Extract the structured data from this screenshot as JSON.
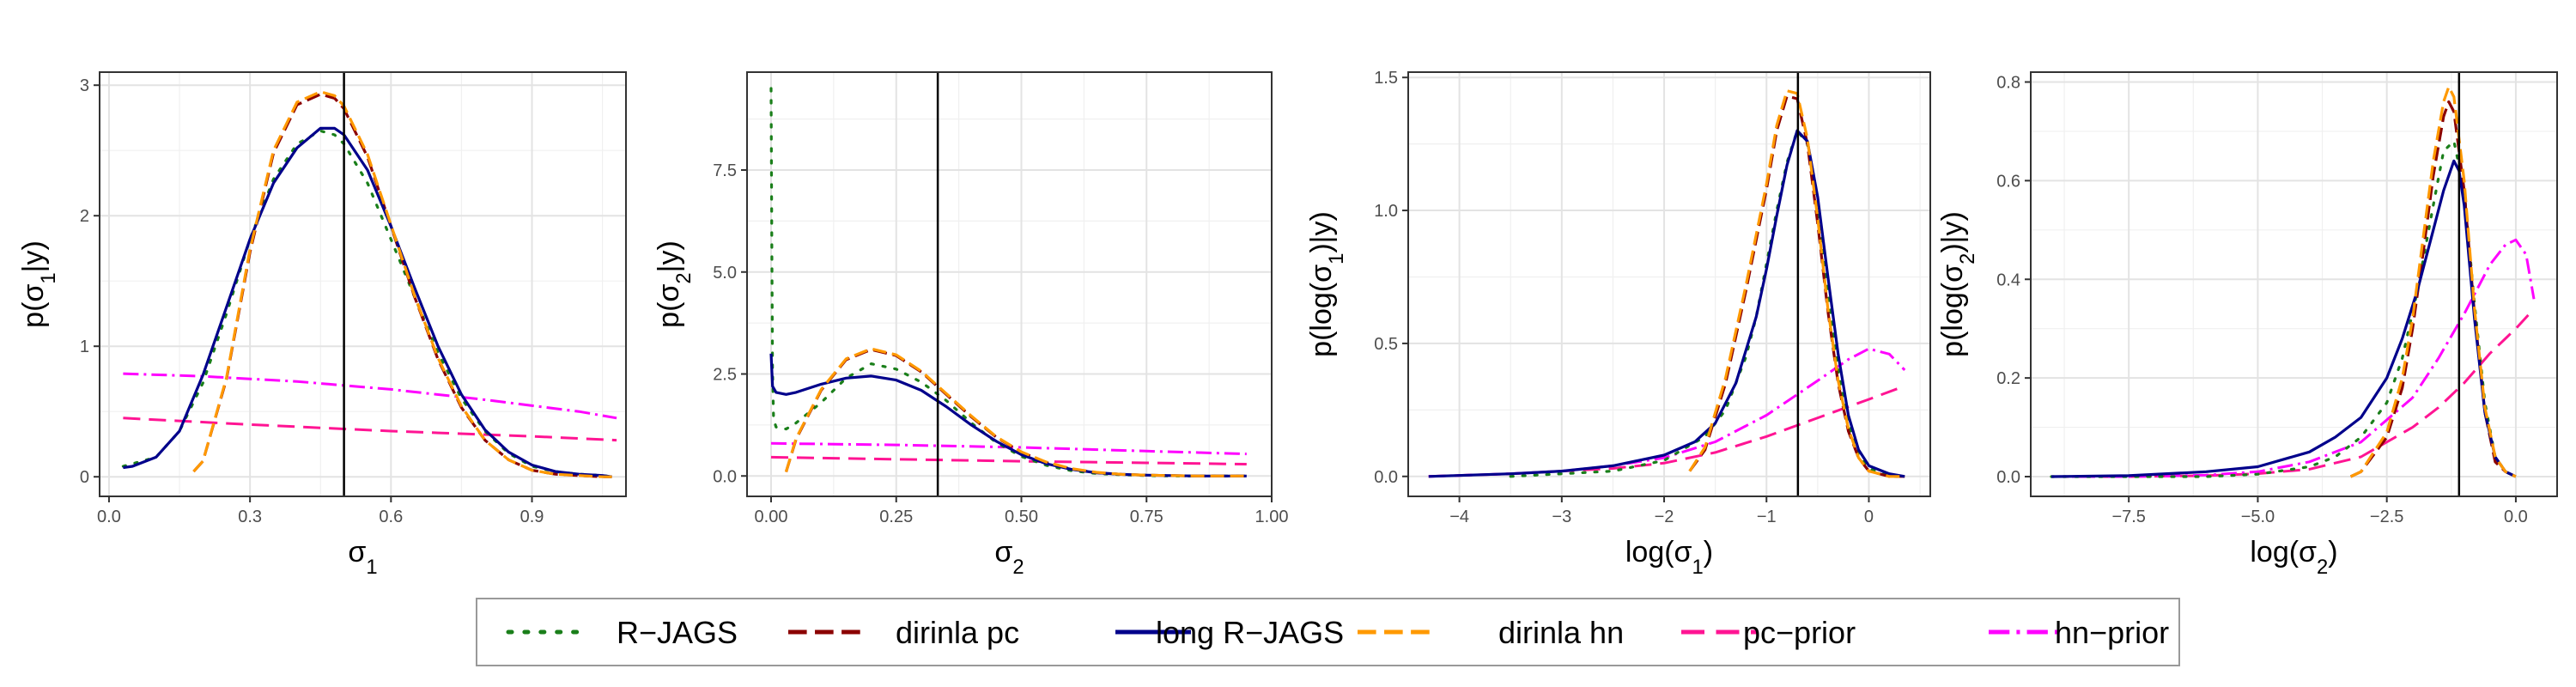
{
  "colors": {
    "R-JAGS": "#1a7f1a",
    "dirinla pc": "#8b0000",
    "long R-JAGS": "#00008b",
    "dirinla hn": "#ff9900",
    "pc-prior": "#ff1493",
    "hn-prior": "#ff00ff",
    "true-value": "#000000"
  },
  "legend": {
    "items": [
      {
        "key": "R-JAGS",
        "label": "R−JAGS"
      },
      {
        "key": "dirinla pc",
        "label": "dirinla pc"
      },
      {
        "key": "long R-JAGS",
        "label": "long R−JAGS"
      },
      {
        "key": "dirinla hn",
        "label": "dirinla hn"
      },
      {
        "key": "pc-prior",
        "label": "pc−prior"
      },
      {
        "key": "hn-prior",
        "label": "hn−prior"
      }
    ]
  },
  "chart_data": [
    {
      "type": "line",
      "xlabel": "σ1",
      "ylabel": "p(σ1|y)",
      "xlim": [
        -0.02,
        1.1
      ],
      "ylim": [
        -0.15,
        3.1
      ],
      "xticks": [
        0.0,
        0.3,
        0.6,
        0.9
      ],
      "xtick_labels": [
        "0.0",
        "0.3",
        "0.6",
        "0.9"
      ],
      "yticks": [
        0,
        1,
        2,
        3
      ],
      "ytick_labels": [
        "0",
        "1",
        "2",
        "3"
      ],
      "vline": 0.5,
      "grid": true,
      "series": [
        {
          "name": "R-JAGS",
          "x": [
            0.03,
            0.1,
            0.15,
            0.2,
            0.25,
            0.3,
            0.35,
            0.4,
            0.45,
            0.48,
            0.5,
            0.55,
            0.6,
            0.65,
            0.7,
            0.75,
            0.8,
            0.85,
            0.9,
            0.95,
            1.0,
            1.05,
            1.07
          ],
          "y": [
            0.08,
            0.15,
            0.35,
            0.72,
            1.25,
            1.82,
            2.28,
            2.55,
            2.65,
            2.62,
            2.55,
            2.25,
            1.82,
            1.38,
            0.95,
            0.6,
            0.35,
            0.18,
            0.08,
            0.04,
            0.02,
            0.01,
            0.0
          ]
        },
        {
          "name": "dirinla pc",
          "x": [
            0.18,
            0.2,
            0.25,
            0.3,
            0.35,
            0.4,
            0.45,
            0.48,
            0.5,
            0.55,
            0.6,
            0.65,
            0.7,
            0.75,
            0.8,
            0.85,
            0.9,
            0.95,
            1.0,
            1.05,
            1.07
          ],
          "y": [
            0.04,
            0.12,
            0.75,
            1.72,
            2.48,
            2.85,
            2.93,
            2.9,
            2.82,
            2.45,
            1.92,
            1.38,
            0.9,
            0.53,
            0.28,
            0.13,
            0.05,
            0.02,
            0.01,
            0.0,
            0.0
          ]
        },
        {
          "name": "long R-JAGS",
          "x": [
            0.03,
            0.05,
            0.1,
            0.15,
            0.2,
            0.25,
            0.3,
            0.35,
            0.4,
            0.45,
            0.48,
            0.5,
            0.55,
            0.6,
            0.65,
            0.7,
            0.75,
            0.8,
            0.85,
            0.9,
            0.95,
            1.0,
            1.05,
            1.07
          ],
          "y": [
            0.07,
            0.08,
            0.15,
            0.35,
            0.78,
            1.3,
            1.82,
            2.25,
            2.52,
            2.67,
            2.67,
            2.62,
            2.35,
            1.92,
            1.45,
            1.0,
            0.63,
            0.36,
            0.19,
            0.09,
            0.04,
            0.02,
            0.01,
            0.0
          ]
        },
        {
          "name": "dirinla hn",
          "x": [
            0.18,
            0.2,
            0.25,
            0.3,
            0.35,
            0.4,
            0.45,
            0.48,
            0.5,
            0.55,
            0.6,
            0.65,
            0.7,
            0.75,
            0.8,
            0.85,
            0.9,
            0.95,
            1.0,
            1.05,
            1.07
          ],
          "y": [
            0.04,
            0.12,
            0.76,
            1.74,
            2.5,
            2.87,
            2.95,
            2.92,
            2.84,
            2.47,
            1.93,
            1.39,
            0.91,
            0.54,
            0.28,
            0.13,
            0.05,
            0.02,
            0.01,
            0.0,
            0.0
          ]
        },
        {
          "name": "pc-prior",
          "x": [
            0.03,
            0.3,
            0.6,
            0.9,
            1.08
          ],
          "y": [
            0.45,
            0.4,
            0.35,
            0.31,
            0.28
          ]
        },
        {
          "name": "hn-prior",
          "x": [
            0.03,
            0.2,
            0.4,
            0.6,
            0.8,
            1.0,
            1.08
          ],
          "y": [
            0.79,
            0.77,
            0.73,
            0.67,
            0.59,
            0.5,
            0.45
          ]
        }
      ]
    },
    {
      "type": "line",
      "xlabel": "σ2",
      "ylabel": "p(σ2|y)",
      "xlim": [
        -0.048,
        1.0
      ],
      "ylim": [
        -0.5,
        9.9
      ],
      "xticks": [
        0.0,
        0.25,
        0.5,
        0.75,
        1.0
      ],
      "xtick_labels": [
        "0.00",
        "0.25",
        "0.50",
        "0.75",
        "1.00"
      ],
      "yticks": [
        0.0,
        2.5,
        5.0,
        7.5
      ],
      "ytick_labels": [
        "0.0",
        "2.5",
        "5.0",
        "7.5"
      ],
      "vline": 0.333,
      "grid": true,
      "series": [
        {
          "name": "R-JAGS",
          "x": [
            0.0,
            0.0015,
            0.003,
            0.005,
            0.01,
            0.03,
            0.05,
            0.1,
            0.15,
            0.2,
            0.25,
            0.3,
            0.35,
            0.4,
            0.45,
            0.5,
            0.55,
            0.6,
            0.65,
            0.7,
            0.75,
            0.8,
            0.85,
            0.9,
            0.95
          ],
          "y": [
            9.5,
            5.5,
            2.6,
            1.4,
            1.2,
            1.15,
            1.3,
            1.8,
            2.4,
            2.75,
            2.62,
            2.3,
            1.85,
            1.3,
            0.82,
            0.48,
            0.26,
            0.13,
            0.06,
            0.03,
            0.01,
            0.0,
            0.0,
            0.0,
            0.0
          ]
        },
        {
          "name": "dirinla pc",
          "x": [
            0.03,
            0.05,
            0.1,
            0.15,
            0.2,
            0.25,
            0.3,
            0.35,
            0.4,
            0.45,
            0.5,
            0.55,
            0.6,
            0.65,
            0.7,
            0.75,
            0.8,
            0.85,
            0.9,
            0.95
          ],
          "y": [
            0.1,
            0.9,
            2.1,
            2.85,
            3.1,
            2.95,
            2.55,
            2.0,
            1.45,
            0.95,
            0.58,
            0.33,
            0.17,
            0.08,
            0.04,
            0.02,
            0.01,
            0.0,
            0.0,
            0.0
          ]
        },
        {
          "name": "long R-JAGS",
          "x": [
            0.0,
            0.003,
            0.01,
            0.03,
            0.05,
            0.1,
            0.15,
            0.2,
            0.25,
            0.3,
            0.35,
            0.4,
            0.45,
            0.5,
            0.55,
            0.6,
            0.65,
            0.7,
            0.75,
            0.8,
            0.85,
            0.9,
            0.95
          ],
          "y": [
            3.0,
            2.2,
            2.05,
            2.0,
            2.05,
            2.25,
            2.4,
            2.45,
            2.35,
            2.1,
            1.7,
            1.25,
            0.85,
            0.52,
            0.3,
            0.16,
            0.08,
            0.04,
            0.02,
            0.01,
            0.0,
            0.0,
            0.0
          ]
        },
        {
          "name": "dirinla hn",
          "x": [
            0.03,
            0.05,
            0.1,
            0.15,
            0.2,
            0.25,
            0.3,
            0.35,
            0.4,
            0.45,
            0.5,
            0.55,
            0.6,
            0.65,
            0.7,
            0.75,
            0.8,
            0.85,
            0.9,
            0.95
          ],
          "y": [
            0.1,
            0.92,
            2.12,
            2.87,
            3.12,
            2.97,
            2.57,
            2.02,
            1.47,
            0.96,
            0.59,
            0.34,
            0.18,
            0.09,
            0.04,
            0.02,
            0.01,
            0.0,
            0.0,
            0.0
          ]
        },
        {
          "name": "pc-prior",
          "x": [
            0.0,
            0.25,
            0.5,
            0.75,
            0.95
          ],
          "y": [
            0.46,
            0.41,
            0.36,
            0.32,
            0.29
          ]
        },
        {
          "name": "hn-prior",
          "x": [
            0.0,
            0.25,
            0.5,
            0.75,
            0.95
          ],
          "y": [
            0.8,
            0.76,
            0.7,
            0.61,
            0.54
          ]
        }
      ]
    },
    {
      "type": "line",
      "xlabel": "log(σ1)",
      "ylabel": "p(log(σ1)|y)",
      "xlim": [
        -4.5,
        0.6
      ],
      "ylim": [
        -0.075,
        1.52
      ],
      "xticks": [
        -4,
        -3,
        -2,
        -1,
        0
      ],
      "xtick_labels": [
        "−4",
        "−3",
        "−2",
        "−1",
        "0"
      ],
      "yticks": [
        0.0,
        0.5,
        1.0,
        1.5
      ],
      "ytick_labels": [
        "0.0",
        "0.5",
        "1.0",
        "1.5"
      ],
      "vline": -0.693,
      "grid": true,
      "series": [
        {
          "name": "R-JAGS",
          "x": [
            -3.5,
            -2.5,
            -2.0,
            -1.6,
            -1.4,
            -1.2,
            -1.1,
            -1.0,
            -0.9,
            -0.8,
            -0.7,
            -0.6,
            -0.5,
            -0.4,
            -0.3,
            -0.2,
            -0.1,
            0.0,
            0.2,
            0.35
          ],
          "y": [
            0.0,
            0.02,
            0.06,
            0.15,
            0.25,
            0.45,
            0.6,
            0.8,
            1.0,
            1.18,
            1.3,
            1.25,
            1.02,
            0.7,
            0.4,
            0.2,
            0.08,
            0.03,
            0.0,
            0.0
          ]
        },
        {
          "name": "dirinla pc",
          "x": [
            -1.75,
            -1.6,
            -1.4,
            -1.2,
            -1.0,
            -0.9,
            -0.8,
            -0.7,
            -0.6,
            -0.5,
            -0.4,
            -0.3,
            -0.2,
            -0.1,
            0.0,
            0.2,
            0.35
          ],
          "y": [
            0.02,
            0.1,
            0.35,
            0.7,
            1.08,
            1.3,
            1.43,
            1.42,
            1.25,
            0.95,
            0.62,
            0.35,
            0.17,
            0.07,
            0.02,
            0.0,
            0.0
          ]
        },
        {
          "name": "long R-JAGS",
          "x": [
            -4.3,
            -3.5,
            -3.0,
            -2.5,
            -2.0,
            -1.7,
            -1.5,
            -1.3,
            -1.1,
            -1.0,
            -0.9,
            -0.8,
            -0.7,
            -0.6,
            -0.5,
            -0.4,
            -0.3,
            -0.2,
            -0.1,
            0.0,
            0.2,
            0.35
          ],
          "y": [
            0.0,
            0.01,
            0.02,
            0.04,
            0.08,
            0.13,
            0.2,
            0.35,
            0.6,
            0.78,
            0.98,
            1.17,
            1.3,
            1.26,
            1.05,
            0.75,
            0.46,
            0.23,
            0.1,
            0.04,
            0.01,
            0.0
          ]
        },
        {
          "name": "dirinla hn",
          "x": [
            -1.75,
            -1.6,
            -1.4,
            -1.2,
            -1.0,
            -0.9,
            -0.8,
            -0.7,
            -0.6,
            -0.5,
            -0.4,
            -0.3,
            -0.2,
            -0.1,
            0.0,
            0.2,
            0.35
          ],
          "y": [
            0.02,
            0.11,
            0.37,
            0.72,
            1.1,
            1.32,
            1.45,
            1.44,
            1.27,
            0.97,
            0.63,
            0.36,
            0.18,
            0.07,
            0.02,
            0.0,
            0.0
          ]
        },
        {
          "name": "pc-prior",
          "x": [
            -4.3,
            -3.5,
            -3.0,
            -2.5,
            -2.0,
            -1.5,
            -1.0,
            -0.5,
            0.0,
            0.35
          ],
          "y": [
            0.0,
            0.01,
            0.02,
            0.03,
            0.05,
            0.09,
            0.15,
            0.22,
            0.29,
            0.34
          ]
        },
        {
          "name": "hn-prior",
          "x": [
            -4.3,
            -3.5,
            -3.0,
            -2.5,
            -2.0,
            -1.5,
            -1.0,
            -0.5,
            -0.2,
            0.0,
            0.2,
            0.35
          ],
          "y": [
            0.0,
            0.01,
            0.02,
            0.04,
            0.07,
            0.13,
            0.23,
            0.36,
            0.44,
            0.48,
            0.46,
            0.4
          ]
        }
      ]
    },
    {
      "type": "line",
      "xlabel": "log(σ2)",
      "ylabel": "p(log(σ2)|y)",
      "xlim": [
        -9.4,
        0.8
      ],
      "ylim": [
        -0.04,
        0.82
      ],
      "xticks": [
        -7.5,
        -5.0,
        -2.5,
        0.0
      ],
      "xtick_labels": [
        "−7.5",
        "−5.0",
        "−2.5",
        "0.0"
      ],
      "yticks": [
        0.0,
        0.2,
        0.4,
        0.6,
        0.8
      ],
      "ytick_labels": [
        "0.0",
        "0.2",
        "0.4",
        "0.6",
        "0.8"
      ],
      "vline": -1.1,
      "grid": true,
      "series": [
        {
          "name": "R-JAGS",
          "x": [
            -9.0,
            -7.5,
            -6.0,
            -5.0,
            -4.0,
            -3.5,
            -3.0,
            -2.5,
            -2.2,
            -1.9,
            -1.6,
            -1.4,
            -1.2,
            -1.0,
            -0.8,
            -0.6,
            -0.4,
            -0.2,
            0.0
          ],
          "y": [
            0.0,
            0.0,
            0.0,
            0.005,
            0.02,
            0.04,
            0.08,
            0.15,
            0.24,
            0.38,
            0.55,
            0.66,
            0.68,
            0.58,
            0.35,
            0.15,
            0.04,
            0.01,
            0.0
          ]
        },
        {
          "name": "dirinla pc",
          "x": [
            -3.2,
            -3.0,
            -2.5,
            -2.2,
            -2.0,
            -1.8,
            -1.6,
            -1.4,
            -1.3,
            -1.2,
            -1.0,
            -0.8,
            -0.6,
            -0.4,
            -0.2,
            0.0
          ],
          "y": [
            0.0,
            0.01,
            0.08,
            0.18,
            0.3,
            0.45,
            0.61,
            0.73,
            0.76,
            0.74,
            0.58,
            0.33,
            0.13,
            0.03,
            0.01,
            0.0
          ]
        },
        {
          "name": "long R-JAGS",
          "x": [
            -9.0,
            -7.5,
            -6.0,
            -5.0,
            -4.0,
            -3.5,
            -3.0,
            -2.5,
            -2.2,
            -1.9,
            -1.6,
            -1.4,
            -1.2,
            -1.1,
            -1.0,
            -0.8,
            -0.6,
            -0.4,
            -0.2,
            0.0
          ],
          "y": [
            0.0,
            0.002,
            0.01,
            0.02,
            0.05,
            0.08,
            0.12,
            0.2,
            0.28,
            0.38,
            0.5,
            0.58,
            0.64,
            0.62,
            0.55,
            0.32,
            0.13,
            0.04,
            0.01,
            0.0
          ]
        },
        {
          "name": "dirinla hn",
          "x": [
            -3.2,
            -3.0,
            -2.5,
            -2.2,
            -2.0,
            -1.8,
            -1.6,
            -1.4,
            -1.3,
            -1.2,
            -1.0,
            -0.8,
            -0.6,
            -0.4,
            -0.2,
            0.0
          ],
          "y": [
            0.0,
            0.01,
            0.09,
            0.2,
            0.32,
            0.48,
            0.64,
            0.76,
            0.79,
            0.77,
            0.6,
            0.34,
            0.14,
            0.04,
            0.01,
            0.0
          ]
        },
        {
          "name": "pc-prior",
          "x": [
            -9.0,
            -7.5,
            -6.0,
            -5.0,
            -4.0,
            -3.0,
            -2.0,
            -1.5,
            -1.0,
            -0.5,
            0.0,
            0.35
          ],
          "y": [
            0.0,
            0.0,
            0.002,
            0.006,
            0.015,
            0.04,
            0.1,
            0.14,
            0.19,
            0.25,
            0.3,
            0.34
          ]
        },
        {
          "name": "hn-prior",
          "x": [
            -9.0,
            -7.5,
            -6.0,
            -5.0,
            -4.0,
            -3.0,
            -2.0,
            -1.5,
            -1.0,
            -0.5,
            -0.2,
            0.0,
            0.2,
            0.35
          ],
          "y": [
            0.0,
            0.0,
            0.003,
            0.01,
            0.03,
            0.07,
            0.16,
            0.24,
            0.33,
            0.43,
            0.47,
            0.48,
            0.45,
            0.36
          ]
        }
      ]
    }
  ]
}
